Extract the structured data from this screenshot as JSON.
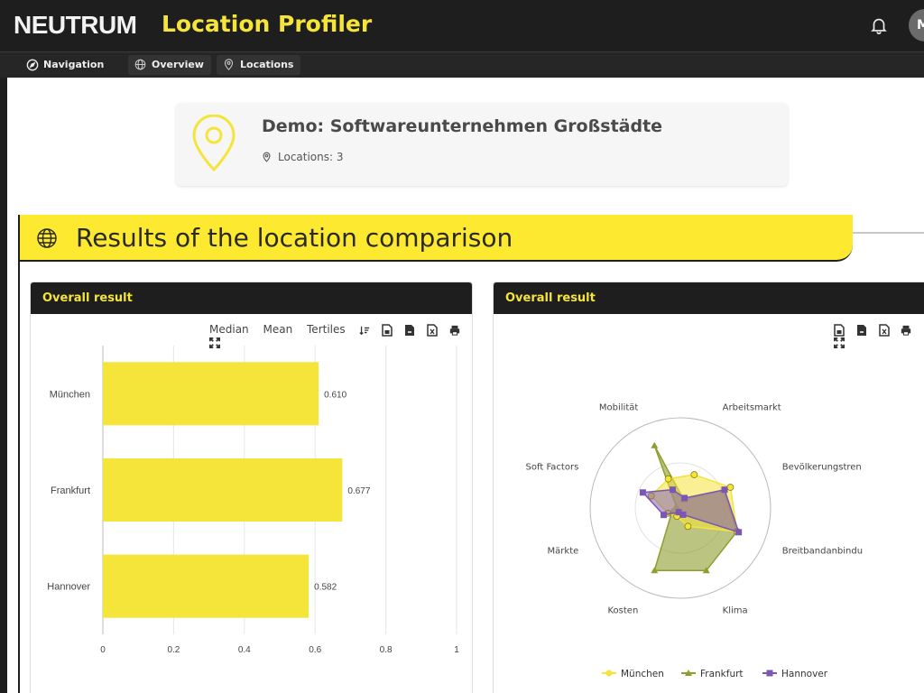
{
  "header": {
    "logo": "NEUTRUM",
    "app_title": "Location Profiler",
    "avatar_initial": "M"
  },
  "subnav": {
    "items": [
      {
        "label": "Navigation"
      },
      {
        "label": "Overview"
      },
      {
        "label": "Locations"
      }
    ]
  },
  "project": {
    "title": "Demo: Softwareunternehmen Großstädte",
    "locations_label": "Locations: 3"
  },
  "section": {
    "title": "Results of the location comparison"
  },
  "panels": {
    "left": {
      "title": "Overall result",
      "toolbar": [
        "Median",
        "Mean",
        "Tertiles"
      ]
    },
    "right": {
      "title": "Overall result"
    }
  },
  "colors": {
    "accent": "#fde92f",
    "dark": "#1e1e1e",
    "munchen": "#f5e43a",
    "frankfurt": "#8f9d2e",
    "hannover": "#7b57b5"
  },
  "chart_data": [
    {
      "type": "bar",
      "orientation": "horizontal",
      "categories": [
        "München",
        "Frankfurt",
        "Hannover"
      ],
      "values": [
        0.61,
        0.677,
        0.582
      ],
      "value_labels": [
        "0.610",
        "0.677",
        "0.582"
      ],
      "xlim": [
        0,
        1
      ],
      "xticks": [
        "0",
        "0.2",
        "0.4",
        "0.6",
        "0.8",
        "1"
      ],
      "grid": true
    },
    {
      "type": "radar",
      "axes": [
        "Arbeitsmarkt",
        "Bevölkerungstren",
        "Breitbandanbindu",
        "Klima",
        "Kosten",
        "Märkte",
        "Soft Factors",
        "Mobilität"
      ],
      "range": [
        0,
        1
      ],
      "series": [
        {
          "name": "München",
          "values": [
            0.4,
            0.6,
            0.68,
            0.22,
            0.1,
            0.15,
            0.35,
            0.35
          ]
        },
        {
          "name": "Frankfurt",
          "values": [
            0.1,
            0.52,
            0.68,
            0.75,
            0.75,
            0.1,
            0.05,
            0.75
          ]
        },
        {
          "name": "Hannover",
          "values": [
            0.12,
            0.53,
            0.7,
            0.08,
            0.05,
            0.2,
            0.45,
            0.22
          ]
        }
      ],
      "legend": "bottom"
    }
  ]
}
